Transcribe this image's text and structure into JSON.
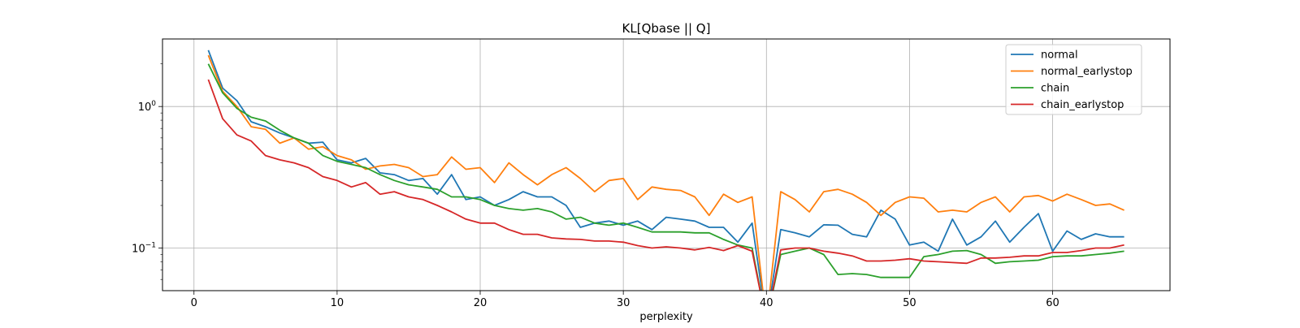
{
  "chart_data": {
    "type": "line",
    "title": "KL[Qbase || Q]",
    "xlabel": "perplexity",
    "ylabel": "",
    "xlim": [
      -2.2,
      68.2
    ],
    "ylim": [
      0.05,
      3.0
    ],
    "yscale": "log",
    "xticks": [
      0,
      10,
      20,
      30,
      40,
      50,
      60
    ],
    "xtick_labels": [
      "0",
      "10",
      "20",
      "30",
      "40",
      "50",
      "60"
    ],
    "yticks": [
      0.1,
      1
    ],
    "ytick_labels": [
      {
        "base": "10",
        "exp": "−1"
      },
      {
        "base": "10",
        "exp": "0"
      }
    ],
    "grid": true,
    "legend_position": "upper right",
    "x": [
      1,
      2,
      3,
      4,
      5,
      6,
      7,
      8,
      9,
      10,
      11,
      12,
      13,
      14,
      15,
      16,
      17,
      18,
      19,
      20,
      21,
      22,
      23,
      24,
      25,
      26,
      27,
      28,
      29,
      30,
      31,
      32,
      33,
      34,
      35,
      36,
      37,
      38,
      39,
      40,
      41,
      42,
      43,
      44,
      45,
      46,
      47,
      48,
      49,
      50,
      51,
      52,
      53,
      54,
      55,
      56,
      57,
      58,
      59,
      60,
      61,
      62,
      63,
      64,
      65
    ],
    "series": [
      {
        "name": "normal",
        "color": "#1f77b4",
        "values": [
          2.5,
          1.35,
          1.1,
          0.78,
          0.72,
          0.65,
          0.6,
          0.55,
          0.56,
          0.42,
          0.4,
          0.43,
          0.34,
          0.33,
          0.3,
          0.31,
          0.24,
          0.33,
          0.22,
          0.23,
          0.2,
          0.22,
          0.25,
          0.23,
          0.23,
          0.2,
          0.14,
          0.15,
          0.155,
          0.145,
          0.155,
          0.135,
          0.165,
          0.16,
          0.155,
          0.14,
          0.14,
          0.11,
          0.15,
          0.03,
          0.135,
          0.128,
          0.12,
          0.146,
          0.145,
          0.125,
          0.12,
          0.185,
          0.16,
          0.105,
          0.11,
          0.095,
          0.16,
          0.105,
          0.12,
          0.155,
          0.11,
          0.14,
          0.175,
          0.095,
          0.132,
          0.115,
          0.126,
          0.12,
          0.12
        ]
      },
      {
        "name": "normal_earlystop",
        "color": "#ff7f0e",
        "values": [
          2.3,
          1.28,
          1.0,
          0.72,
          0.69,
          0.55,
          0.6,
          0.5,
          0.52,
          0.45,
          0.42,
          0.36,
          0.38,
          0.39,
          0.37,
          0.32,
          0.33,
          0.44,
          0.36,
          0.37,
          0.29,
          0.4,
          0.33,
          0.28,
          0.33,
          0.37,
          0.31,
          0.25,
          0.3,
          0.31,
          0.22,
          0.27,
          0.26,
          0.255,
          0.23,
          0.17,
          0.24,
          0.21,
          0.23,
          0.03,
          0.25,
          0.22,
          0.18,
          0.25,
          0.26,
          0.24,
          0.21,
          0.17,
          0.21,
          0.23,
          0.225,
          0.18,
          0.185,
          0.18,
          0.21,
          0.23,
          0.18,
          0.23,
          0.235,
          0.215,
          0.24,
          0.22,
          0.2,
          0.205,
          0.185
        ]
      },
      {
        "name": "chain",
        "color": "#2ca02c",
        "values": [
          2.0,
          1.25,
          0.97,
          0.84,
          0.79,
          0.68,
          0.6,
          0.55,
          0.45,
          0.41,
          0.39,
          0.37,
          0.33,
          0.3,
          0.28,
          0.27,
          0.26,
          0.23,
          0.23,
          0.22,
          0.2,
          0.19,
          0.185,
          0.19,
          0.18,
          0.16,
          0.165,
          0.15,
          0.145,
          0.15,
          0.14,
          0.13,
          0.13,
          0.13,
          0.128,
          0.128,
          0.115,
          0.105,
          0.1,
          0.03,
          0.09,
          0.095,
          0.1,
          0.09,
          0.065,
          0.066,
          0.065,
          0.062,
          0.062,
          0.062,
          0.087,
          0.09,
          0.095,
          0.096,
          0.09,
          0.078,
          0.08,
          0.081,
          0.082,
          0.087,
          0.088,
          0.088,
          0.09,
          0.092,
          0.095
        ]
      },
      {
        "name": "chain_earlystop",
        "color": "#d62728",
        "values": [
          1.55,
          0.82,
          0.63,
          0.57,
          0.45,
          0.42,
          0.4,
          0.37,
          0.32,
          0.3,
          0.27,
          0.29,
          0.24,
          0.25,
          0.23,
          0.22,
          0.2,
          0.18,
          0.16,
          0.15,
          0.15,
          0.135,
          0.125,
          0.125,
          0.118,
          0.116,
          0.115,
          0.112,
          0.112,
          0.11,
          0.104,
          0.1,
          0.102,
          0.1,
          0.097,
          0.101,
          0.096,
          0.104,
          0.095,
          0.03,
          0.097,
          0.1,
          0.1,
          0.095,
          0.092,
          0.088,
          0.081,
          0.081,
          0.082,
          0.084,
          0.081,
          0.08,
          0.079,
          0.078,
          0.085,
          0.085,
          0.086,
          0.088,
          0.088,
          0.093,
          0.093,
          0.096,
          0.1,
          0.1,
          0.105
        ]
      }
    ]
  }
}
